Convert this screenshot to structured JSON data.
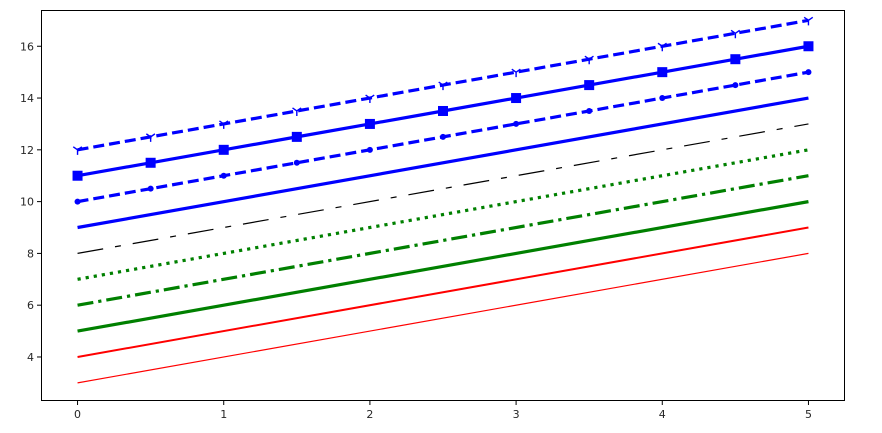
{
  "chart_data": {
    "type": "line",
    "title": "",
    "xlabel": "",
    "ylabel": "",
    "xlim": [
      -0.25,
      5.25
    ],
    "ylim": [
      2.3,
      17.4
    ],
    "xticks": [
      0,
      1,
      2,
      3,
      4,
      5
    ],
    "yticks": [
      4,
      6,
      8,
      10,
      12,
      14,
      16
    ],
    "grid": false,
    "legend": "none",
    "series": [
      {
        "color": "#ff0000",
        "style": "solid",
        "width": "thin",
        "marker": "none",
        "x": [
          0,
          5
        ],
        "y": [
          3,
          8
        ]
      },
      {
        "color": "#ff0000",
        "style": "solid",
        "width": "medium",
        "marker": "none",
        "x": [
          0,
          5
        ],
        "y": [
          4,
          9
        ]
      },
      {
        "color": "#008000",
        "style": "solid",
        "width": "thick",
        "marker": "none",
        "x": [
          0,
          5
        ],
        "y": [
          5,
          10
        ]
      },
      {
        "color": "#008000",
        "style": "dashdot",
        "width": "thick",
        "marker": "none",
        "x": [
          0,
          5
        ],
        "y": [
          6,
          11
        ]
      },
      {
        "color": "#008000",
        "style": "dotted",
        "width": "thick",
        "marker": "none",
        "x": [
          0,
          5
        ],
        "y": [
          7,
          12
        ]
      },
      {
        "color": "#000000",
        "style": "longdashdot",
        "width": "thin",
        "marker": "none",
        "x": [
          0,
          5
        ],
        "y": [
          8,
          13
        ]
      },
      {
        "color": "#0000ff",
        "style": "solid",
        "width": "thick",
        "marker": "none",
        "x": [
          0,
          5
        ],
        "y": [
          9,
          14
        ]
      },
      {
        "color": "#0000ff",
        "style": "dashed",
        "width": "thick",
        "marker": "circle",
        "x": [
          0,
          0.5,
          1,
          1.5,
          2,
          2.5,
          3,
          3.5,
          4,
          4.5,
          5
        ],
        "y": [
          10,
          10.5,
          11,
          11.5,
          12,
          12.5,
          13,
          13.5,
          14,
          14.5,
          15
        ]
      },
      {
        "color": "#0000ff",
        "style": "solid",
        "width": "thick",
        "marker": "square",
        "x": [
          0,
          0.5,
          1,
          1.5,
          2,
          2.5,
          3,
          3.5,
          4,
          4.5,
          5
        ],
        "y": [
          11,
          11.5,
          12,
          12.5,
          13,
          13.5,
          14,
          14.5,
          15,
          15.5,
          16
        ]
      },
      {
        "color": "#0000ff",
        "style": "dashed",
        "width": "thick",
        "marker": "tri-down",
        "x": [
          0,
          0.5,
          1,
          1.5,
          2,
          2.5,
          3,
          3.5,
          4,
          4.5,
          5
        ],
        "y": [
          12,
          12.5,
          13,
          13.5,
          14,
          14.5,
          15,
          15.5,
          16,
          16.5,
          17
        ]
      }
    ]
  }
}
